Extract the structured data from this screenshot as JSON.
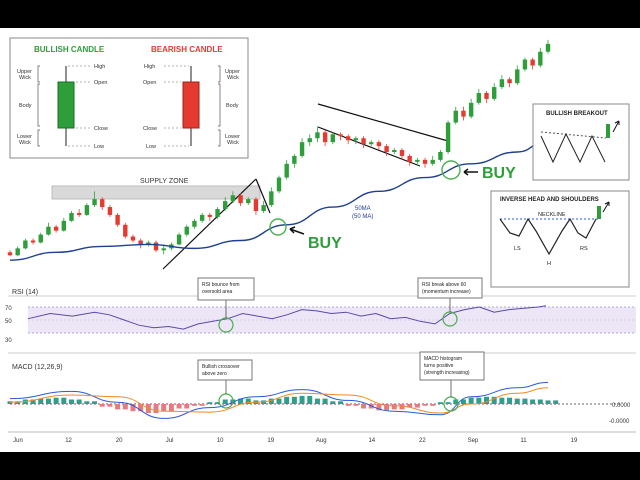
{
  "chart_data": [
    {
      "type": "candlestick",
      "title": "",
      "xlabel": "",
      "ylabel": "",
      "x_ticks": [
        "Jun",
        "12",
        "20",
        "Jul",
        "10",
        "19",
        "Aug",
        "14",
        "22",
        "Sep",
        "11",
        "19"
      ],
      "grid": true,
      "series": [
        {
          "name": "Price",
          "values": [
            [
              0,
              18,
              15,
              14,
              20
            ],
            [
              1,
              15,
              22,
              14,
              24
            ],
            [
              2,
              22,
              30,
              21,
              32
            ],
            [
              3,
              30,
              28,
              26,
              32
            ],
            [
              4,
              28,
              36,
              27,
              38
            ],
            [
              5,
              36,
              44,
              35,
              48
            ],
            [
              6,
              44,
              40,
              38,
              46
            ],
            [
              7,
              40,
              50,
              39,
              53
            ],
            [
              8,
              50,
              58,
              49,
              60
            ],
            [
              9,
              58,
              56,
              54,
              62
            ],
            [
              10,
              56,
              66,
              55,
              68
            ],
            [
              11,
              66,
              72,
              64,
              80
            ],
            [
              12,
              72,
              64,
              61,
              74
            ],
            [
              13,
              64,
              56,
              54,
              66
            ],
            [
              14,
              56,
              46,
              44,
              58
            ],
            [
              15,
              46,
              34,
              32,
              48
            ],
            [
              16,
              34,
              30,
              28,
              36
            ],
            [
              17,
              30,
              26,
              22,
              32
            ],
            [
              18,
              26,
              28,
              24,
              30
            ],
            [
              19,
              28,
              20,
              18,
              30
            ],
            [
              20,
              20,
              22,
              16,
              26
            ],
            [
              21,
              22,
              26,
              20,
              28
            ],
            [
              22,
              26,
              36,
              25,
              38
            ],
            [
              23,
              36,
              44,
              34,
              46
            ],
            [
              24,
              44,
              50,
              42,
              52
            ],
            [
              25,
              50,
              56,
              48,
              58
            ],
            [
              26,
              56,
              54,
              50,
              58
            ],
            [
              27,
              54,
              62,
              52,
              64
            ],
            [
              28,
              62,
              70,
              60,
              74
            ],
            [
              29,
              70,
              76,
              68,
              80
            ],
            [
              30,
              76,
              68,
              65,
              78
            ],
            [
              31,
              68,
              72,
              66,
              74
            ],
            [
              32,
              72,
              60,
              56,
              74
            ],
            [
              33,
              60,
              66,
              58,
              70
            ],
            [
              34,
              66,
              80,
              64,
              84
            ],
            [
              35,
              80,
              94,
              78,
              96
            ],
            [
              36,
              94,
              108,
              92,
              112
            ],
            [
              37,
              108,
              116,
              104,
              118
            ],
            [
              38,
              116,
              130,
              114,
              134
            ],
            [
              39,
              130,
              134,
              126,
              138
            ],
            [
              40,
              134,
              140,
              130,
              146
            ],
            [
              41,
              140,
              130,
              126,
              142
            ],
            [
              42,
              130,
              138,
              128,
              140
            ],
            [
              43,
              138,
              136,
              132,
              140
            ],
            [
              44,
              136,
              132,
              128,
              138
            ],
            [
              45,
              132,
              134,
              128,
              136
            ],
            [
              46,
              134,
              128,
              124,
              136
            ],
            [
              47,
              128,
              130,
              126,
              132
            ],
            [
              48,
              130,
              126,
              122,
              132
            ],
            [
              49,
              126,
              120,
              116,
              128
            ],
            [
              50,
              120,
              122,
              118,
              124
            ],
            [
              51,
              122,
              116,
              112,
              124
            ],
            [
              52,
              116,
              110,
              106,
              118
            ],
            [
              53,
              110,
              112,
              106,
              114
            ],
            [
              54,
              112,
              108,
              104,
              114
            ],
            [
              55,
              108,
              112,
              106,
              116
            ],
            [
              56,
              112,
              120,
              110,
              122
            ],
            [
              57,
              120,
              150,
              118,
              152
            ],
            [
              58,
              150,
              162,
              148,
              166
            ],
            [
              59,
              162,
              156,
              152,
              166
            ],
            [
              60,
              156,
              170,
              154,
              174
            ],
            [
              61,
              170,
              180,
              168,
              184
            ],
            [
              62,
              180,
              174,
              170,
              182
            ],
            [
              63,
              174,
              186,
              172,
              190
            ],
            [
              64,
              186,
              194,
              184,
              198
            ],
            [
              65,
              194,
              190,
              186,
              196
            ],
            [
              66,
              190,
              204,
              188,
              208
            ],
            [
              67,
              204,
              214,
              202,
              216
            ],
            [
              68,
              214,
              208,
              204,
              216
            ],
            [
              69,
              208,
              222,
              206,
              226
            ],
            [
              70,
              222,
              230,
              220,
              234
            ]
          ]
        },
        {
          "name": "50 MA",
          "values": [
            [
              0,
              10
            ],
            [
              6,
              18
            ],
            [
              12,
              24
            ],
            [
              18,
              26
            ],
            [
              24,
              22
            ],
            [
              30,
              30
            ],
            [
              36,
              46
            ],
            [
              42,
              64
            ],
            [
              48,
              80
            ],
            [
              54,
              94
            ],
            [
              60,
              108
            ],
            [
              66,
              120
            ],
            [
              70,
              132
            ]
          ]
        }
      ]
    },
    {
      "type": "line",
      "title": "RSI (14)",
      "ylim": [
        30,
        70
      ],
      "y_ticks": [
        70,
        50,
        30
      ],
      "series": [
        {
          "name": "RSI",
          "values": [
            [
              0,
              52
            ],
            [
              3,
              60
            ],
            [
              6,
              56
            ],
            [
              9,
              62
            ],
            [
              11,
              58
            ],
            [
              13,
              50
            ],
            [
              15,
              42
            ],
            [
              17,
              38
            ],
            [
              19,
              40
            ],
            [
              21,
              36
            ],
            [
              23,
              44
            ],
            [
              25,
              48
            ],
            [
              27,
              52
            ],
            [
              29,
              60
            ],
            [
              31,
              56
            ],
            [
              33,
              52
            ],
            [
              35,
              58
            ],
            [
              37,
              66
            ],
            [
              39,
              64
            ],
            [
              41,
              60
            ],
            [
              43,
              62
            ],
            [
              45,
              56
            ],
            [
              47,
              60
            ],
            [
              49,
              52
            ],
            [
              51,
              54
            ],
            [
              53,
              48
            ],
            [
              55,
              44
            ],
            [
              57,
              60
            ],
            [
              59,
              66
            ],
            [
              61,
              70
            ],
            [
              63,
              62
            ],
            [
              65,
              66
            ],
            [
              67,
              68
            ],
            [
              69,
              70
            ],
            [
              70,
              72
            ]
          ]
        }
      ]
    },
    {
      "type": "line",
      "title": "MACD (12,26,9)",
      "y_ticks": [
        "0.0000",
        "-0.0000"
      ],
      "series": [
        {
          "name": "MACD",
          "values": [
            [
              0,
              0.6
            ],
            [
              8,
              1.4
            ],
            [
              14,
              0.2
            ],
            [
              20,
              -1.6
            ],
            [
              26,
              -0.4
            ],
            [
              32,
              0.8
            ],
            [
              38,
              1.6
            ],
            [
              44,
              0.4
            ],
            [
              50,
              -0.8
            ],
            [
              56,
              -1.2
            ],
            [
              60,
              0.8
            ],
            [
              66,
              1.8
            ],
            [
              70,
              2.4
            ]
          ]
        },
        {
          "name": "Signal",
          "values": [
            [
              0,
              0.2
            ],
            [
              8,
              1.0
            ],
            [
              14,
              0.8
            ],
            [
              20,
              -0.8
            ],
            [
              26,
              -0.9
            ],
            [
              32,
              0.2
            ],
            [
              38,
              1.2
            ],
            [
              44,
              1.0
            ],
            [
              50,
              -0.2
            ],
            [
              56,
              -1.0
            ],
            [
              60,
              0.0
            ],
            [
              66,
              1.2
            ],
            [
              70,
              1.8
            ]
          ]
        },
        {
          "name": "Histogram",
          "values": [
            [
              0,
              0.3
            ],
            [
              2,
              0.5
            ],
            [
              4,
              0.6
            ],
            [
              6,
              0.7
            ],
            [
              8,
              0.5
            ],
            [
              10,
              0.3
            ],
            [
              12,
              -0.3
            ],
            [
              14,
              -0.6
            ],
            [
              16,
              -0.8
            ],
            [
              18,
              -1.0
            ],
            [
              20,
              -0.8
            ],
            [
              22,
              -0.5
            ],
            [
              24,
              -0.2
            ],
            [
              26,
              0.2
            ],
            [
              28,
              0.5
            ],
            [
              30,
              0.6
            ],
            [
              32,
              0.4
            ],
            [
              34,
              0.6
            ],
            [
              36,
              0.8
            ],
            [
              38,
              0.9
            ],
            [
              40,
              0.6
            ],
            [
              42,
              0.3
            ],
            [
              44,
              -0.2
            ],
            [
              46,
              -0.5
            ],
            [
              48,
              -0.7
            ],
            [
              50,
              -0.6
            ],
            [
              52,
              -0.4
            ],
            [
              54,
              -0.2
            ],
            [
              56,
              0.2
            ],
            [
              58,
              0.5
            ],
            [
              60,
              0.7
            ],
            [
              62,
              0.8
            ],
            [
              64,
              0.7
            ],
            [
              66,
              0.6
            ],
            [
              68,
              0.5
            ],
            [
              70,
              0.4
            ]
          ]
        }
      ]
    }
  ],
  "candle_legend": {
    "bull_title": "BULLISH CANDLE",
    "bear_title": "BEARISH CANDLE",
    "bull_labels": {
      "high": "High",
      "open": "Open",
      "close": "Close",
      "low": "Low"
    },
    "bear_labels": {
      "high": "High",
      "open": "Open",
      "close": "Close",
      "low": "Low"
    },
    "upper_wick": "Upper\nWick",
    "body": "Body",
    "lower_wick": "Lower\nWick",
    "bull_color": "#2e9e3a",
    "bear_color": "#e43a2f"
  },
  "annotations": {
    "supply_zone": "SUPPLY ZONE",
    "buy_1": "BUY",
    "buy_2": "BUY",
    "ma_label_1": "50MA",
    "ma_label_2": "(50 MA)",
    "rsi_note_1": "RSI bounce from\noversold area",
    "rsi_note_2": "RSI break above 60\n(momentum increase)",
    "macd_note_1": "Bullish crossover\nabove zero",
    "macd_note_2": "MACD histogram\nturns positive\n(strength increasing)"
  },
  "inset_breakout": {
    "title": "BULLISH BREAKOUT"
  },
  "inset_ihs": {
    "title": "INVERSE HEAD AND SHOULDERS",
    "neckline": "NECKLINE",
    "ls": "LS",
    "h": "H",
    "rs": "RS"
  },
  "colors": {
    "bull": "#2e9e3a",
    "bear": "#e43a2f",
    "ma": "#1f3f8f",
    "rsi": "#5a4aa8",
    "rsi_band": "#ece6f7",
    "macd": "#2a5bd7",
    "signal": "#f08a24",
    "hist_pos": "#2f9e8f",
    "hist_neg": "#e77a80",
    "buy": "#2e9e3a",
    "circle": "#4caf50"
  }
}
